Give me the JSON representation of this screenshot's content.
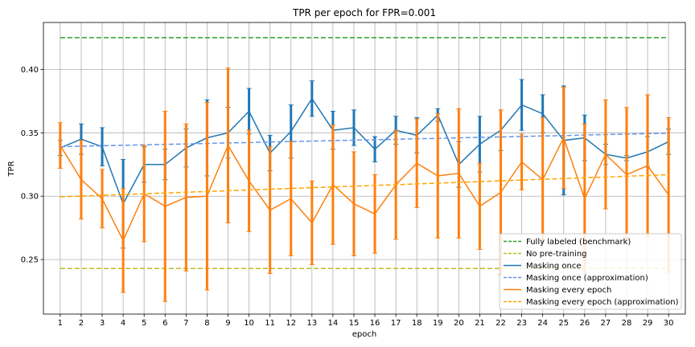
{
  "chart_data": {
    "type": "line",
    "title": "TPR per epoch for FPR=0.001",
    "xlabel": "epoch",
    "ylabel": "TPR",
    "x": [
      1,
      2,
      3,
      4,
      5,
      6,
      7,
      8,
      9,
      10,
      11,
      12,
      13,
      14,
      15,
      16,
      17,
      18,
      19,
      20,
      21,
      22,
      23,
      24,
      25,
      26,
      27,
      28,
      29,
      30
    ],
    "xlim": [
      0.2,
      30.8
    ],
    "ylim": [
      0.207,
      0.437
    ],
    "yticks": [
      "0.25",
      "0.30",
      "0.35",
      "0.40"
    ],
    "ytick_values": [
      0.25,
      0.3,
      0.35,
      0.4
    ],
    "grid": true,
    "legend_position": "lower right",
    "series": [
      {
        "name": "Fully labeled (benchmark)",
        "color": "#2ca02c",
        "style": "dashed",
        "values": [
          0.425,
          0.425,
          0.425,
          0.425,
          0.425,
          0.425,
          0.425,
          0.425,
          0.425,
          0.425,
          0.425,
          0.425,
          0.425,
          0.425,
          0.425,
          0.425,
          0.425,
          0.425,
          0.425,
          0.425,
          0.425,
          0.425,
          0.425,
          0.425,
          0.425,
          0.425,
          0.425,
          0.425,
          0.425,
          0.425
        ]
      },
      {
        "name": "No pre-training",
        "color": "#bcbd22",
        "style": "dashed",
        "values": [
          0.243,
          0.243,
          0.243,
          0.243,
          0.243,
          0.243,
          0.243,
          0.243,
          0.243,
          0.243,
          0.243,
          0.243,
          0.243,
          0.243,
          0.243,
          0.243,
          0.243,
          0.243,
          0.243,
          0.243,
          0.243,
          0.243,
          0.243,
          0.243,
          0.243,
          0.243,
          0.243,
          0.243,
          0.243,
          0.243
        ]
      },
      {
        "name": "Masking once",
        "color": "#1f77b4",
        "style": "solid",
        "values": [
          0.338,
          0.345,
          0.339,
          0.294,
          0.325,
          0.325,
          0.338,
          0.346,
          0.35,
          0.367,
          0.334,
          0.351,
          0.377,
          0.352,
          0.354,
          0.337,
          0.352,
          0.348,
          0.364,
          0.325,
          0.341,
          0.352,
          0.372,
          0.365,
          0.344,
          0.346,
          0.333,
          0.33,
          0.335,
          0.343
        ],
        "errors": [
          0.006,
          0.012,
          0.015,
          0.035,
          0.014,
          0.012,
          0.015,
          0.03,
          0.02,
          0.018,
          0.014,
          0.021,
          0.014,
          0.015,
          0.014,
          0.01,
          0.011,
          0.014,
          0.005,
          0.018,
          0.022,
          0.016,
          0.02,
          0.015,
          0.043,
          0.018,
          0.008,
          0.002,
          0.012,
          0.01
        ]
      },
      {
        "name": "Masking once (approximation)",
        "color": "#6495ed",
        "style": "dashed",
        "values": [
          0.339,
          0.3394,
          0.3398,
          0.3401,
          0.3405,
          0.3409,
          0.3412,
          0.3416,
          0.342,
          0.3423,
          0.3427,
          0.3431,
          0.3434,
          0.3438,
          0.3442,
          0.3445,
          0.3449,
          0.3453,
          0.3456,
          0.346,
          0.3464,
          0.3467,
          0.3471,
          0.3475,
          0.3478,
          0.3482,
          0.3486,
          0.3489,
          0.3493,
          0.3497
        ]
      },
      {
        "name": "Masking every epoch",
        "color": "#ff7f0e",
        "style": "solid",
        "values": [
          0.34,
          0.313,
          0.298,
          0.265,
          0.302,
          0.292,
          0.299,
          0.3,
          0.34,
          0.312,
          0.289,
          0.298,
          0.279,
          0.309,
          0.294,
          0.286,
          0.309,
          0.326,
          0.316,
          0.318,
          0.292,
          0.303,
          0.327,
          0.313,
          0.346,
          0.298,
          0.333,
          0.317,
          0.324,
          0.301
        ],
        "errors": [
          0.018,
          0.031,
          0.023,
          0.041,
          0.038,
          0.075,
          0.058,
          0.074,
          0.061,
          0.04,
          0.05,
          0.045,
          0.033,
          0.047,
          0.041,
          0.031,
          0.043,
          0.035,
          0.049,
          0.051,
          0.034,
          0.065,
          0.022,
          0.049,
          0.04,
          0.059,
          0.043,
          0.053,
          0.056,
          0.061
        ]
      },
      {
        "name": "Masking every epoch (approximation)",
        "color": "#ffa500",
        "style": "dashed",
        "values": [
          0.2995,
          0.3001,
          0.3007,
          0.3013,
          0.3019,
          0.3025,
          0.3031,
          0.3037,
          0.3043,
          0.3049,
          0.3055,
          0.3061,
          0.3067,
          0.3073,
          0.3079,
          0.3085,
          0.3091,
          0.3097,
          0.3103,
          0.3109,
          0.3115,
          0.3121,
          0.3127,
          0.3133,
          0.3139,
          0.3145,
          0.3151,
          0.3157,
          0.3163,
          0.3169
        ]
      }
    ]
  }
}
